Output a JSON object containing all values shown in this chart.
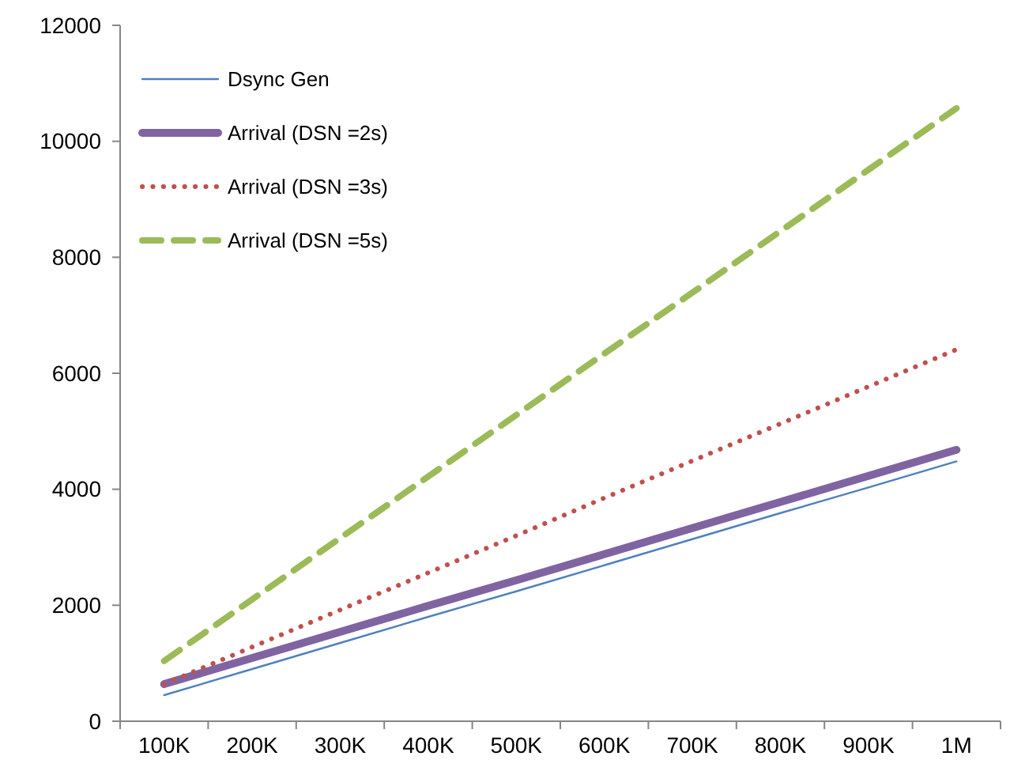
{
  "chart_data": {
    "type": "line",
    "categories": [
      "100K",
      "200K",
      "300K",
      "400K",
      "500K",
      "600K",
      "700K",
      "800K",
      "900K",
      "1M"
    ],
    "ylim": [
      0,
      12000
    ],
    "yticks": [
      0,
      2000,
      4000,
      6000,
      8000,
      10000,
      12000
    ],
    "grid": false,
    "legend": "top left",
    "series": [
      {
        "name": "Dsync Gen",
        "color": "#4f81bd",
        "line_style": "solid",
        "values": [
          450,
          900,
          1350,
          1800,
          2240,
          2690,
          3140,
          3590,
          4030,
          4480
        ]
      },
      {
        "name": "Arrival (DSN =2s)",
        "color": "#8064a2",
        "line_style": "solid",
        "values": [
          640,
          1090,
          1540,
          1990,
          2430,
          2880,
          3330,
          3780,
          4230,
          4680
        ]
      },
      {
        "name": "Arrival (DSN =3s)",
        "color": "#c0504d",
        "line_style": "dotted",
        "values": [
          640,
          1280,
          1920,
          2560,
          3200,
          3850,
          4490,
          5130,
          5770,
          6410
        ]
      },
      {
        "name": "Arrival (DSN =5s)",
        "color": "#9bbb59",
        "line_style": "dashed",
        "values": [
          1040,
          2100,
          3160,
          4220,
          5280,
          6340,
          7390,
          8450,
          9510,
          10570
        ]
      }
    ]
  }
}
